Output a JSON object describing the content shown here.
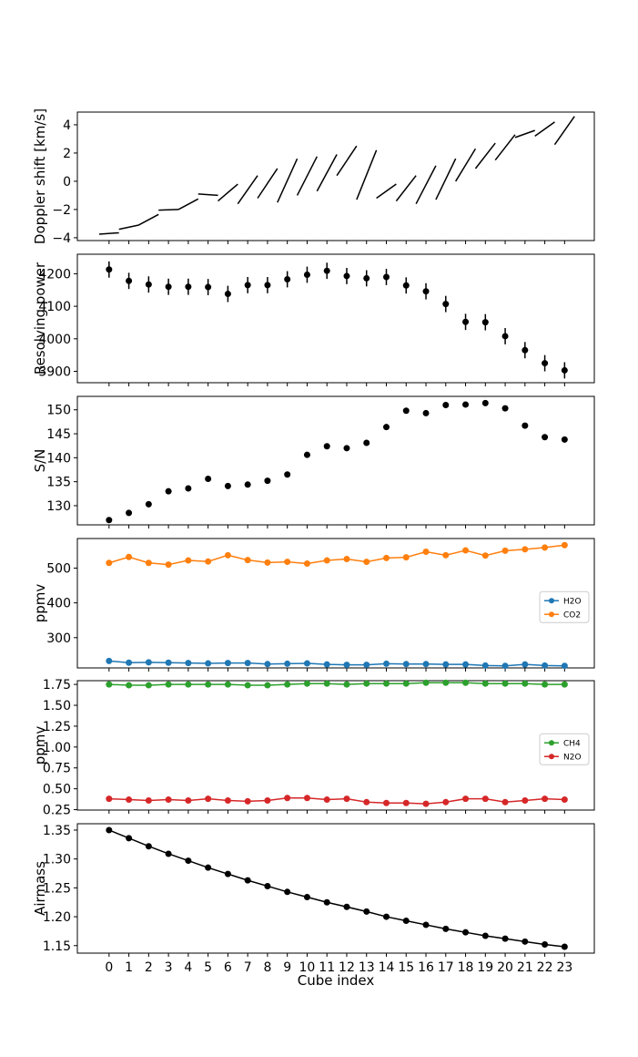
{
  "chart_data": {
    "type": "multi-panel",
    "xlabel": "Cube index",
    "x": [
      0,
      1,
      2,
      3,
      4,
      5,
      6,
      7,
      8,
      9,
      10,
      11,
      12,
      13,
      14,
      15,
      16,
      17,
      18,
      19,
      20,
      21,
      22,
      23
    ],
    "xticks": [
      "0",
      "1",
      "2",
      "3",
      "4",
      "5",
      "6",
      "7",
      "8",
      "9",
      "10",
      "11",
      "12",
      "13",
      "14",
      "15",
      "16",
      "17",
      "18",
      "19",
      "20",
      "21",
      "22",
      "23"
    ],
    "xlim": [
      -1.6,
      24.5
    ],
    "panels": [
      {
        "type": "line-segments",
        "ylabel": "Doppler shift [km/s]",
        "ylim": [
          -4.2,
          4.9
        ],
        "yticks": [
          -4,
          -2,
          0,
          2,
          4
        ],
        "yticklabels": [
          "−4",
          "−2",
          "0",
          "2",
          "4"
        ],
        "series": [
          {
            "name": "Doppler",
            "color": "#000000",
            "segments": [
              [
                [
                  -0.5,
                  -3.75
                ],
                [
                  0.5,
                  -3.65
                ]
              ],
              [
                [
                  0.5,
                  -3.4
                ],
                [
                  1.5,
                  -3.1
                ]
              ],
              [
                [
                  1.5,
                  -3.1
                ],
                [
                  2.5,
                  -2.35
                ]
              ],
              [
                [
                  2.5,
                  -2.05
                ],
                [
                  3.5,
                  -2.0
                ]
              ],
              [
                [
                  3.5,
                  -2.0
                ],
                [
                  4.5,
                  -1.25
                ]
              ],
              [
                [
                  4.5,
                  -0.9
                ],
                [
                  5.5,
                  -1.0
                ]
              ],
              [
                [
                  5.5,
                  -1.4
                ],
                [
                  6.5,
                  -0.2
                ]
              ],
              [
                [
                  6.5,
                  -1.6
                ],
                [
                  7.5,
                  0.4
                ]
              ],
              [
                [
                  7.5,
                  -1.2
                ],
                [
                  8.5,
                  0.9
                ]
              ],
              [
                [
                  8.5,
                  -1.5
                ],
                [
                  9.5,
                  1.6
                ]
              ],
              [
                [
                  9.5,
                  -1.0
                ],
                [
                  10.5,
                  1.75
                ]
              ],
              [
                [
                  10.5,
                  -0.7
                ],
                [
                  11.5,
                  1.9
                ]
              ],
              [
                [
                  11.5,
                  0.4
                ],
                [
                  12.5,
                  2.5
                ]
              ],
              [
                [
                  12.5,
                  -1.3
                ],
                [
                  13.5,
                  2.2
                ]
              ],
              [
                [
                  13.5,
                  -1.2
                ],
                [
                  14.5,
                  -0.2
                ]
              ],
              [
                [
                  14.5,
                  -1.4
                ],
                [
                  15.5,
                  0.4
                ]
              ],
              [
                [
                  15.5,
                  -1.6
                ],
                [
                  16.5,
                  1.1
                ]
              ],
              [
                [
                  16.5,
                  -1.3
                ],
                [
                  17.5,
                  1.6
                ]
              ],
              [
                [
                  17.5,
                  0.0
                ],
                [
                  18.5,
                  2.3
                ]
              ],
              [
                [
                  18.5,
                  0.9
                ],
                [
                  19.5,
                  2.7
                ]
              ],
              [
                [
                  19.5,
                  1.5
                ],
                [
                  20.5,
                  3.3
                ]
              ],
              [
                [
                  20.5,
                  3.1
                ],
                [
                  21.5,
                  3.6
                ]
              ],
              [
                [
                  21.5,
                  3.2
                ],
                [
                  22.5,
                  4.2
                ]
              ],
              [
                [
                  22.5,
                  2.6
                ],
                [
                  23.5,
                  4.6
                ]
              ]
            ]
          }
        ]
      },
      {
        "type": "errorbar",
        "ylabel": "Resolving power",
        "ylim": [
          3865,
          4260
        ],
        "yticks": [
          3900,
          4000,
          4100,
          4200
        ],
        "yticklabels": [
          "3900",
          "4000",
          "4100",
          "4200"
        ],
        "series": [
          {
            "name": "Resolving power",
            "color": "#000000",
            "marker": true,
            "line": false,
            "values": [
              4213,
              4178,
              4167,
              4160,
              4160,
              4159,
              4138,
              4165,
              4165,
              4183,
              4197,
              4209,
              4193,
              4186,
              4190,
              4164,
              4146,
              4107,
              4052,
              4051,
              4008,
              3965,
              3925,
              3903
            ],
            "errors": [
              25,
              25,
              25,
              25,
              25,
              25,
              25,
              25,
              25,
              25,
              25,
              25,
              25,
              25,
              25,
              25,
              25,
              25,
              25,
              25,
              25,
              25,
              25,
              25
            ]
          }
        ]
      },
      {
        "type": "scatter",
        "ylabel": "S/N",
        "ylim": [
          126.0,
          152.8
        ],
        "yticks": [
          130,
          135,
          140,
          145,
          150
        ],
        "yticklabels": [
          "130",
          "135",
          "140",
          "145",
          "150"
        ],
        "series": [
          {
            "name": "S/N",
            "color": "#000000",
            "marker": true,
            "line": false,
            "values": [
              127.0,
              128.5,
              130.3,
              133.0,
              133.6,
              135.6,
              134.1,
              134.4,
              135.2,
              136.5,
              140.6,
              142.4,
              142.0,
              143.1,
              146.4,
              149.8,
              149.3,
              151.0,
              151.1,
              151.4,
              150.3,
              146.7,
              144.3,
              143.8
            ]
          }
        ]
      },
      {
        "type": "line",
        "ylabel": "ppmv",
        "ylim": [
          213,
          585
        ],
        "yticks": [
          300,
          400,
          500
        ],
        "yticklabels": [
          "300",
          "400",
          "500"
        ],
        "legend_position": "right",
        "series": [
          {
            "name": "H2O",
            "color": "#1f77b4",
            "marker": true,
            "line": true,
            "values": [
              233,
              228,
              229,
              228,
              227,
              226,
              227,
              227,
              224,
              225,
              226,
              223,
              222,
              222,
              225,
              224,
              224,
              223,
              223,
              220,
              219,
              223,
              220,
              219
            ]
          },
          {
            "name": "CO2",
            "color": "#ff7f0e",
            "marker": true,
            "line": true,
            "values": [
              515,
              532,
              515,
              510,
              522,
              519,
              537,
              523,
              516,
              518,
              513,
              522,
              526,
              518,
              529,
              531,
              547,
              537,
              551,
              536,
              550,
              554,
              559,
              566
            ]
          }
        ]
      },
      {
        "type": "line",
        "ylabel": "ppmv",
        "ylim": [
          0.245,
          1.795
        ],
        "yticks": [
          0.25,
          0.5,
          0.75,
          1.0,
          1.25,
          1.5,
          1.75
        ],
        "yticklabels": [
          "0.25",
          "0.50",
          "0.75",
          "1.00",
          "1.25",
          "1.50",
          "1.75"
        ],
        "legend_position": "right",
        "series": [
          {
            "name": "CH4",
            "color": "#2ca02c",
            "marker": true,
            "line": true,
            "values": [
              1.75,
              1.74,
              1.74,
              1.75,
              1.75,
              1.75,
              1.75,
              1.74,
              1.74,
              1.75,
              1.76,
              1.76,
              1.75,
              1.76,
              1.76,
              1.76,
              1.77,
              1.77,
              1.77,
              1.76,
              1.76,
              1.76,
              1.75,
              1.75
            ]
          },
          {
            "name": "N2O",
            "color": "#d62728",
            "marker": true,
            "line": true,
            "values": [
              0.38,
              0.37,
              0.36,
              0.37,
              0.36,
              0.38,
              0.36,
              0.35,
              0.36,
              0.39,
              0.39,
              0.37,
              0.38,
              0.34,
              0.33,
              0.33,
              0.32,
              0.34,
              0.38,
              0.38,
              0.34,
              0.36,
              0.38,
              0.37
            ]
          }
        ]
      },
      {
        "type": "line",
        "ylabel": "Airmass",
        "ylim": [
          1.137,
          1.361
        ],
        "yticks": [
          1.15,
          1.2,
          1.25,
          1.3,
          1.35
        ],
        "yticklabels": [
          "1.15",
          "1.20",
          "1.25",
          "1.30",
          "1.35"
        ],
        "series": [
          {
            "name": "Airmass",
            "color": "#000000",
            "marker": true,
            "line": true,
            "values": [
              1.35,
              1.336,
              1.322,
              1.309,
              1.297,
              1.285,
              1.274,
              1.263,
              1.253,
              1.243,
              1.234,
              1.225,
              1.217,
              1.209,
              1.2,
              1.193,
              1.186,
              1.179,
              1.173,
              1.167,
              1.162,
              1.157,
              1.152,
              1.148
            ]
          }
        ]
      }
    ]
  }
}
